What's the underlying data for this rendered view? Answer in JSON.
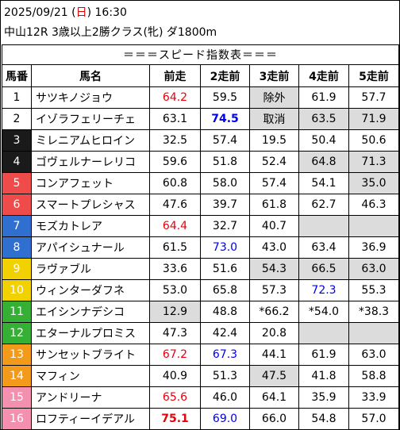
{
  "header": {
    "date_prefix": "2025/09/21 (",
    "weekday": "日",
    "date_suffix": ") 16:30",
    "race": "中山12R 3歳以上2勝クラス(牝) ダ1800m"
  },
  "table_title": "＝＝＝スピード指数表＝＝＝",
  "columns": [
    "馬番",
    "馬名",
    "前走",
    "2走前",
    "3走前",
    "4走前",
    "5走前"
  ],
  "colors": {
    "red_text": "#e8000b",
    "blue_text": "#0000ee",
    "gray_cell": "#dcdcdc",
    "gate_1": "#ffffff",
    "gate_2": "#1a1a1a",
    "gate_3": "#f04b4b",
    "gate_4": "#2f6fd0",
    "gate_5": "#f2d100",
    "gate_6": "#35b035",
    "gate_7": "#f49a1a",
    "gate_8": "#f58fb0"
  },
  "rows": [
    {
      "num": "1",
      "gate": 0,
      "name": "サツキノジョウ",
      "cells": [
        {
          "v": "64.2",
          "c": "red"
        },
        {
          "v": "59.5"
        },
        {
          "v": "除外",
          "g": true
        },
        {
          "v": "61.9"
        },
        {
          "v": "57.7"
        }
      ]
    },
    {
      "num": "2",
      "gate": 0,
      "name": "イゾラフェリーチェ",
      "cells": [
        {
          "v": "63.1"
        },
        {
          "v": "74.5",
          "c": "blue",
          "b": true
        },
        {
          "v": "取消",
          "g": true
        },
        {
          "v": "63.5",
          "g": true
        },
        {
          "v": "71.9",
          "g": true
        }
      ]
    },
    {
      "num": "3",
      "gate": 1,
      "name": "ミレニアムヒロイン",
      "cells": [
        {
          "v": "32.5"
        },
        {
          "v": "57.4"
        },
        {
          "v": "19.5"
        },
        {
          "v": "50.4"
        },
        {
          "v": "50.6"
        }
      ]
    },
    {
      "num": "4",
      "gate": 1,
      "name": "ゴヴェルナーレリコ",
      "cells": [
        {
          "v": "59.6"
        },
        {
          "v": "51.8"
        },
        {
          "v": "52.4"
        },
        {
          "v": "64.8",
          "g": true
        },
        {
          "v": "71.3",
          "g": true
        }
      ]
    },
    {
      "num": "5",
      "gate": 2,
      "name": "コンアフェット",
      "cells": [
        {
          "v": "60.8"
        },
        {
          "v": "58.0"
        },
        {
          "v": "57.4"
        },
        {
          "v": "54.1"
        },
        {
          "v": "35.0",
          "g": true
        }
      ]
    },
    {
      "num": "6",
      "gate": 2,
      "name": "スマートプレシャス",
      "cells": [
        {
          "v": "47.6"
        },
        {
          "v": "39.7"
        },
        {
          "v": "61.8"
        },
        {
          "v": "62.7"
        },
        {
          "v": "46.3"
        }
      ]
    },
    {
      "num": "7",
      "gate": 3,
      "name": "モズカトレア",
      "cells": [
        {
          "v": "64.4",
          "c": "red"
        },
        {
          "v": "32.7"
        },
        {
          "v": "40.7"
        },
        {
          "v": "",
          "g": true
        },
        {
          "v": "",
          "g": true
        }
      ]
    },
    {
      "num": "8",
      "gate": 3,
      "name": "アパイシュナール",
      "cells": [
        {
          "v": "61.5"
        },
        {
          "v": "73.0",
          "c": "blue"
        },
        {
          "v": "43.0"
        },
        {
          "v": "63.4"
        },
        {
          "v": "36.9"
        }
      ]
    },
    {
      "num": "9",
      "gate": 4,
      "name": "ラヴァブル",
      "cells": [
        {
          "v": "33.6"
        },
        {
          "v": "51.6"
        },
        {
          "v": "54.3",
          "g": true
        },
        {
          "v": "66.5",
          "g": true
        },
        {
          "v": "63.0",
          "g": true
        }
      ]
    },
    {
      "num": "10",
      "gate": 4,
      "name": "ウィンターダフネ",
      "cells": [
        {
          "v": "53.0"
        },
        {
          "v": "65.8"
        },
        {
          "v": "57.3"
        },
        {
          "v": "72.3",
          "c": "blue"
        },
        {
          "v": "55.3"
        }
      ]
    },
    {
      "num": "11",
      "gate": 5,
      "name": "エイシンナデシコ",
      "cells": [
        {
          "v": "12.9",
          "g": true
        },
        {
          "v": "48.8"
        },
        {
          "v": "*66.2"
        },
        {
          "v": "*54.0"
        },
        {
          "v": "*38.3"
        }
      ]
    },
    {
      "num": "12",
      "gate": 5,
      "name": "エターナルプロミス",
      "cells": [
        {
          "v": "47.3"
        },
        {
          "v": "42.4"
        },
        {
          "v": "20.8"
        },
        {
          "v": "",
          "g": true
        },
        {
          "v": "",
          "g": true
        }
      ]
    },
    {
      "num": "13",
      "gate": 6,
      "name": "サンセットブライト",
      "cells": [
        {
          "v": "67.2",
          "c": "red"
        },
        {
          "v": "67.3",
          "c": "blue"
        },
        {
          "v": "44.1"
        },
        {
          "v": "61.9"
        },
        {
          "v": "63.0"
        }
      ]
    },
    {
      "num": "14",
      "gate": 6,
      "name": "マフィン",
      "cells": [
        {
          "v": "40.9"
        },
        {
          "v": "51.3"
        },
        {
          "v": "47.5",
          "g": true
        },
        {
          "v": "41.8"
        },
        {
          "v": "58.8"
        }
      ]
    },
    {
      "num": "15",
      "gate": 7,
      "name": "アンドリーナ",
      "cells": [
        {
          "v": "65.6",
          "c": "red"
        },
        {
          "v": "46.0"
        },
        {
          "v": "64.1"
        },
        {
          "v": "35.9"
        },
        {
          "v": "33.9"
        }
      ]
    },
    {
      "num": "16",
      "gate": 7,
      "name": "ロフティーイデアル",
      "cells": [
        {
          "v": "75.1",
          "c": "red",
          "b": true
        },
        {
          "v": "69.0",
          "c": "blue"
        },
        {
          "v": "66.0"
        },
        {
          "v": "54.8"
        },
        {
          "v": "57.0"
        }
      ]
    }
  ]
}
